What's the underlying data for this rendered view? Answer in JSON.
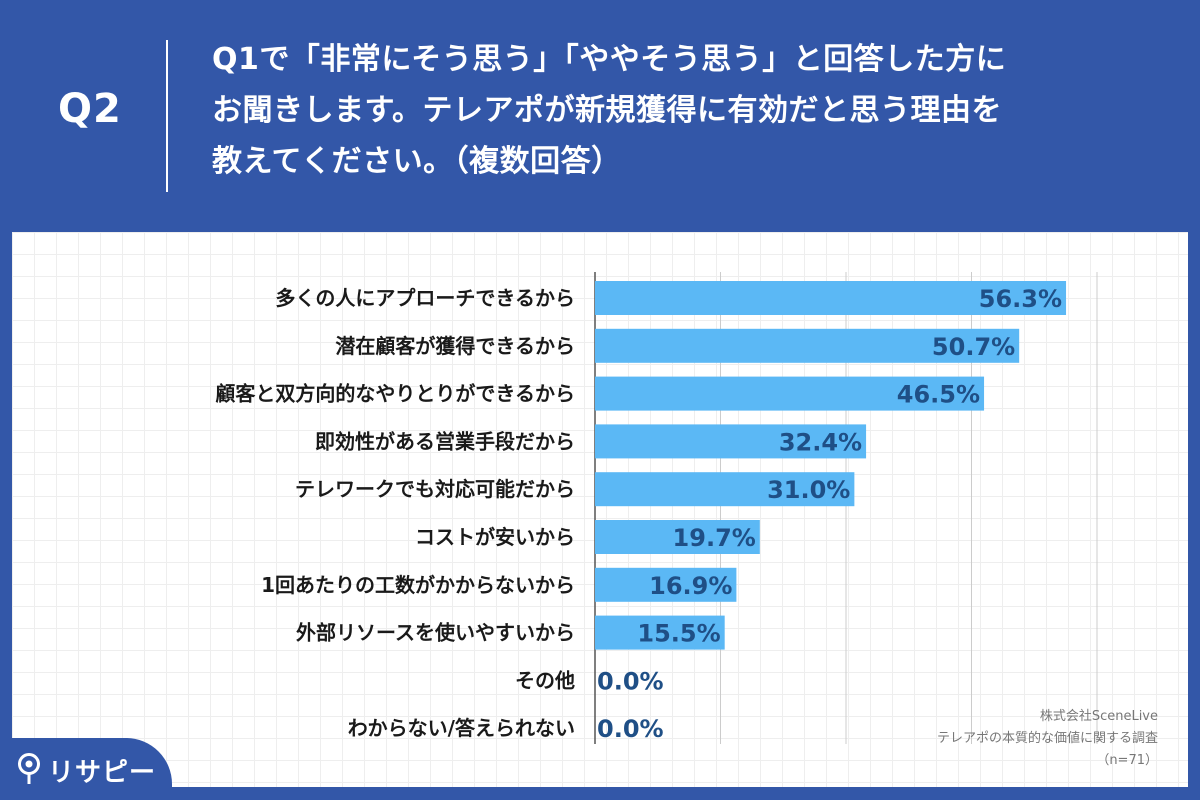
{
  "header": {
    "q_label": "Q2",
    "question_lines": [
      "Q1で「非常にそう思う」「ややそう思う」と回答した方に",
      "お聞きします。テレアポが新規獲得に有効だと思う理由を",
      "教えてください。（複数回答）"
    ]
  },
  "chart_data": {
    "type": "bar",
    "orientation": "horizontal",
    "categories": [
      "多くの人にアプローチできるから",
      "潜在顧客が獲得できるから",
      "顧客と双方向的なやりとりができるから",
      "即効性がある営業手段だから",
      "テレワークでも対応可能だから",
      "コストが安いから",
      "1回あたりの工数がかからないから",
      "外部リソースを使いやすいから",
      "その他",
      "わからない/答えられない"
    ],
    "values": [
      56.3,
      50.7,
      46.5,
      32.4,
      31.0,
      19.7,
      16.9,
      15.5,
      0.0,
      0.0
    ],
    "value_labels": [
      "56.3%",
      "50.7%",
      "46.5%",
      "32.4%",
      "31.0%",
      "19.7%",
      "16.9%",
      "15.5%",
      "0.0%",
      "0.0%"
    ],
    "xlim": [
      0,
      60
    ],
    "gridlines": [
      0,
      15,
      30,
      45,
      60
    ],
    "bar_color": "#5bb8f5",
    "value_label_color": "#1f4f86",
    "grid": true
  },
  "source": {
    "company": "株式会社SceneLive",
    "survey": "テレアポの本質的な価値に関する調査",
    "sample": "（n=71）"
  },
  "logo": {
    "text": "リサピー",
    "color": "#ffffff"
  },
  "colors": {
    "background": "#3357a8",
    "panel": "#ffffff"
  }
}
